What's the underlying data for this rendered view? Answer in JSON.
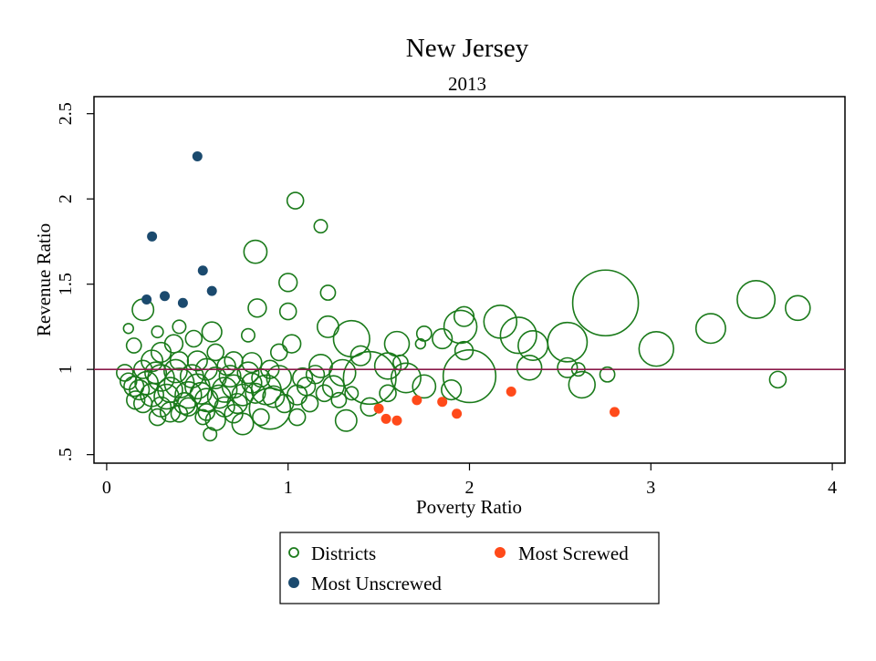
{
  "chart_data": {
    "type": "scatter",
    "title": "New Jersey",
    "subtitle": "2013",
    "xlabel": "Poverty Ratio",
    "ylabel": "Revenue Ratio",
    "xlim": [
      -0.07,
      4.07
    ],
    "ylim": [
      0.45,
      2.6
    ],
    "xticks": [
      0,
      1,
      2,
      3,
      4
    ],
    "xtick_labels": [
      "0",
      "1",
      "2",
      "3",
      "4"
    ],
    "yticks": [
      0.5,
      1,
      1.5,
      2,
      2.5
    ],
    "ytick_labels": [
      ".5",
      "1",
      "1.5",
      "2",
      "2.5"
    ],
    "reference_line": {
      "y": 1.0,
      "color": "#8b1a4a"
    },
    "colors": {
      "districts": "#1a7a1a",
      "most_screwed": "#ff4a1a",
      "most_unscrewed": "#1b4a6e",
      "frame": "#000000"
    },
    "legend": {
      "placement": "bottom",
      "entries": [
        {
          "label": "Districts",
          "series": "districts"
        },
        {
          "label": "Most Screwed",
          "series": "most_screwed"
        },
        {
          "label": "Most Unscrewed",
          "series": "most_unscrewed"
        }
      ]
    },
    "series": [
      {
        "name": "Most Unscrewed",
        "key": "most_unscrewed",
        "points": [
          [
            0.5,
            2.25
          ],
          [
            0.25,
            1.78
          ],
          [
            0.53,
            1.58
          ],
          [
            0.32,
            1.43
          ],
          [
            0.22,
            1.41
          ],
          [
            0.42,
            1.39
          ],
          [
            0.58,
            1.46
          ]
        ]
      },
      {
        "name": "Most Screwed",
        "key": "most_screwed",
        "points": [
          [
            1.5,
            0.77
          ],
          [
            1.54,
            0.71
          ],
          [
            1.6,
            0.7
          ],
          [
            1.71,
            0.82
          ],
          [
            1.85,
            0.81
          ],
          [
            1.93,
            0.74
          ],
          [
            2.23,
            0.87
          ],
          [
            2.8,
            0.75
          ]
        ]
      },
      {
        "name": "Districts",
        "key": "districts",
        "points": [
          [
            1.04,
            1.99,
            1.0
          ],
          [
            1.18,
            1.84,
            0.8
          ],
          [
            0.82,
            1.69,
            1.4
          ],
          [
            1.0,
            1.51,
            1.1
          ],
          [
            1.22,
            1.45,
            0.9
          ],
          [
            0.83,
            1.36,
            1.1
          ],
          [
            1.0,
            1.34,
            1.0
          ],
          [
            1.22,
            1.25,
            1.3
          ],
          [
            1.35,
            1.18,
            2.2
          ],
          [
            1.6,
            1.15,
            1.5
          ],
          [
            1.75,
            1.21,
            0.9
          ],
          [
            1.85,
            1.18,
            1.2
          ],
          [
            1.95,
            1.25,
            2.0
          ],
          [
            1.97,
            1.31,
            1.2
          ],
          [
            1.97,
            1.11,
            1.1
          ],
          [
            2.17,
            1.28,
            2.0
          ],
          [
            2.27,
            1.2,
            2.2
          ],
          [
            2.35,
            1.14,
            1.8
          ],
          [
            2.33,
            1.01,
            1.5
          ],
          [
            2.54,
            1.16,
            2.4
          ],
          [
            2.54,
            1.01,
            1.2
          ],
          [
            2.62,
            0.91,
            1.6
          ],
          [
            2.75,
            1.39,
            4.0
          ],
          [
            2.76,
            0.97,
            0.9
          ],
          [
            3.03,
            1.12,
            2.1
          ],
          [
            3.33,
            1.24,
            1.8
          ],
          [
            3.58,
            1.41,
            2.3
          ],
          [
            3.81,
            1.36,
            1.5
          ],
          [
            3.7,
            0.94,
            1.0
          ],
          [
            2.0,
            0.96,
            3.2
          ],
          [
            1.45,
            0.95,
            3.2
          ],
          [
            1.55,
            1.02,
            1.6
          ],
          [
            1.65,
            0.95,
            1.8
          ],
          [
            1.75,
            0.9,
            1.4
          ],
          [
            1.9,
            0.88,
            1.2
          ],
          [
            1.18,
            1.02,
            1.4
          ],
          [
            1.3,
            0.98,
            1.6
          ],
          [
            1.32,
            0.7,
            1.3
          ],
          [
            1.4,
            1.08,
            1.2
          ],
          [
            1.25,
            0.9,
            1.3
          ],
          [
            0.9,
            0.77,
            2.5
          ],
          [
            0.88,
            0.88,
            1.8
          ],
          [
            0.95,
            0.95,
            1.5
          ],
          [
            0.75,
            0.68,
            1.3
          ],
          [
            0.6,
            0.7,
            1.2
          ],
          [
            0.57,
            0.62,
            0.8
          ],
          [
            0.1,
            0.98,
            1.0
          ],
          [
            0.15,
            0.9,
            1.2
          ],
          [
            0.2,
            1.35,
            1.3
          ],
          [
            0.2,
            1.0,
            1.1
          ],
          [
            0.25,
            0.85,
            1.4
          ],
          [
            0.3,
            0.95,
            1.6
          ],
          [
            0.35,
            0.88,
            1.5
          ],
          [
            0.4,
            0.92,
            1.8
          ],
          [
            0.45,
            0.85,
            1.6
          ],
          [
            0.5,
            0.9,
            1.5
          ],
          [
            0.55,
            0.82,
            1.4
          ],
          [
            0.6,
            0.95,
            1.3
          ],
          [
            0.65,
            0.88,
            1.5
          ],
          [
            0.7,
            0.9,
            1.4
          ],
          [
            0.75,
            0.85,
            1.3
          ],
          [
            0.8,
            0.92,
            1.2
          ],
          [
            0.85,
            0.95,
            1.1
          ],
          [
            1.05,
            0.85,
            1.2
          ],
          [
            1.1,
            0.9,
            1.1
          ],
          [
            0.3,
            1.1,
            1.2
          ],
          [
            0.4,
            1.05,
            1.1
          ],
          [
            0.5,
            1.05,
            1.2
          ],
          [
            0.6,
            1.1,
            1.0
          ],
          [
            0.7,
            1.05,
            1.1
          ],
          [
            0.35,
            0.75,
            1.2
          ],
          [
            0.45,
            0.78,
            1.1
          ],
          [
            0.55,
            0.75,
            1.0
          ],
          [
            0.65,
            0.78,
            1.2
          ],
          [
            0.2,
            0.8,
            1.1
          ],
          [
            0.28,
            0.72,
            1.0
          ],
          [
            0.15,
            1.14,
            0.9
          ],
          [
            0.58,
            1.22,
            1.2
          ],
          [
            0.48,
            1.18,
            1.0
          ],
          [
            0.95,
            1.1,
            1.0
          ],
          [
            1.02,
            1.15,
            1.1
          ],
          [
            1.12,
            0.8,
            1.0
          ],
          [
            1.28,
            0.82,
            0.9
          ],
          [
            1.35,
            0.86,
            0.8
          ],
          [
            0.78,
            1.2,
            0.8
          ],
          [
            0.4,
            1.25,
            0.8
          ],
          [
            0.12,
            1.24,
            0.6
          ],
          [
            0.28,
            1.22,
            0.7
          ],
          [
            1.73,
            1.15,
            0.6
          ],
          [
            2.6,
            1.0,
            0.8
          ],
          [
            0.18,
            0.88,
            1.2
          ],
          [
            0.22,
            0.92,
            1.4
          ],
          [
            0.27,
            0.98,
            1.3
          ],
          [
            0.33,
            0.84,
            1.5
          ],
          [
            0.38,
            0.99,
            1.4
          ],
          [
            0.43,
            0.8,
            1.3
          ],
          [
            0.47,
            0.96,
            1.4
          ],
          [
            0.52,
            0.86,
            1.3
          ],
          [
            0.62,
            0.84,
            1.4
          ],
          [
            0.68,
            0.96,
            1.3
          ],
          [
            0.72,
            0.8,
            1.2
          ],
          [
            0.78,
            0.98,
            1.3
          ],
          [
            0.82,
            0.86,
            1.2
          ],
          [
            0.92,
            0.84,
            1.3
          ],
          [
            0.98,
            0.8,
            1.1
          ],
          [
            1.08,
            0.95,
            1.2
          ],
          [
            1.15,
            0.97,
            1.1
          ],
          [
            1.2,
            0.86,
            1.0
          ],
          [
            0.3,
            0.78,
            1.2
          ],
          [
            0.4,
            0.74,
            1.0
          ],
          [
            0.53,
            0.72,
            0.9
          ],
          [
            0.7,
            0.74,
            1.1
          ],
          [
            0.85,
            0.72,
            1.0
          ],
          [
            0.25,
            1.05,
            1.3
          ],
          [
            0.37,
            1.15,
            1.1
          ],
          [
            0.55,
            1.0,
            1.3
          ],
          [
            0.66,
            1.02,
            1.1
          ],
          [
            0.8,
            1.04,
            1.2
          ],
          [
            0.9,
            1.0,
            1.1
          ],
          [
            1.45,
            0.78,
            1.1
          ],
          [
            1.55,
            0.86,
            1.0
          ],
          [
            1.62,
            1.04,
            0.9
          ],
          [
            1.05,
            0.72,
            1.0
          ],
          [
            0.16,
            0.82,
            1.1
          ],
          [
            0.12,
            0.93,
            1.0
          ]
        ]
      }
    ]
  }
}
